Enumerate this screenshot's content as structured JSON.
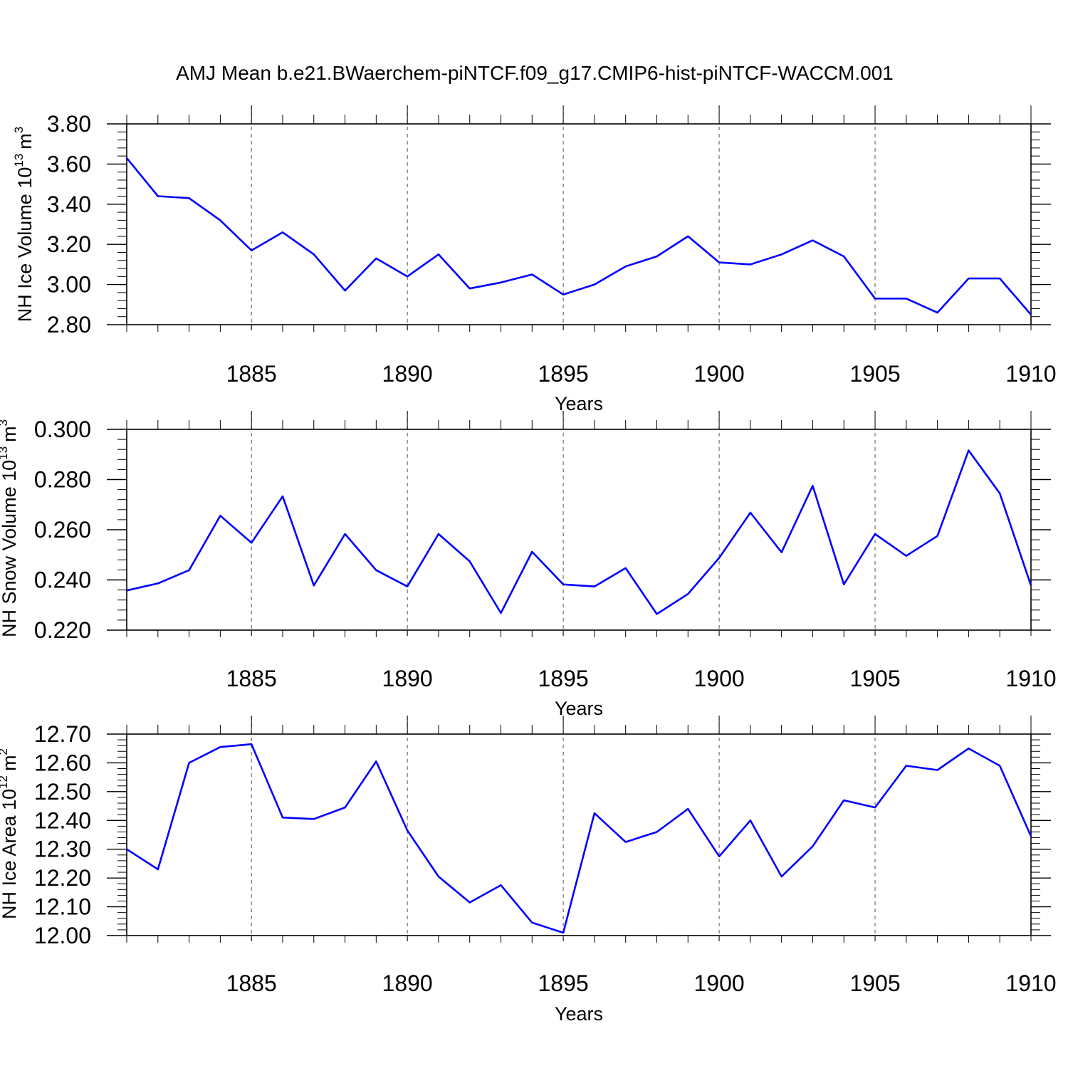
{
  "title": "AMJ Mean b.e21.BWaerchem-piNTCF.f09_g17.CMIP6-hist-piNTCF-WACCM.001",
  "line_color": "#0000ff",
  "chart_data": [
    {
      "type": "line",
      "ylabel_main": "NH Ice Volume 10",
      "ylabel_exp": "13",
      "ylabel_unit": "m",
      "ylabel_unit_exp": "3",
      "xlabel": "Years",
      "xlim": [
        1881,
        1910
      ],
      "ylim": [
        2.8,
        3.8
      ],
      "yticks": [
        "2.80",
        "3.00",
        "3.20",
        "3.40",
        "3.60",
        "3.80"
      ],
      "xticks": [
        "1885",
        "1890",
        "1895",
        "1900",
        "1905",
        "1910"
      ],
      "grid_x": true,
      "x": [
        1881,
        1882,
        1883,
        1884,
        1885,
        1886,
        1887,
        1888,
        1889,
        1890,
        1891,
        1892,
        1893,
        1894,
        1895,
        1896,
        1897,
        1898,
        1899,
        1900,
        1901,
        1902,
        1903,
        1904,
        1905,
        1906,
        1907,
        1908,
        1909,
        1910
      ],
      "values": [
        3.63,
        3.44,
        3.43,
        3.32,
        3.17,
        3.26,
        3.15,
        2.97,
        3.13,
        3.04,
        3.15,
        2.98,
        3.01,
        3.05,
        2.95,
        3.0,
        3.09,
        3.14,
        3.24,
        3.11,
        3.1,
        3.15,
        3.22,
        3.14,
        2.93,
        2.93,
        2.86,
        3.03,
        3.03,
        2.85
      ]
    },
    {
      "type": "line",
      "ylabel_main": "NH Snow Volume 10",
      "ylabel_exp": "13",
      "ylabel_unit": "m",
      "ylabel_unit_exp": "3",
      "xlabel": "Years",
      "xlim": [
        1881,
        1910
      ],
      "ylim": [
        0.22,
        0.3
      ],
      "yticks": [
        "0.220",
        "0.240",
        "0.260",
        "0.280",
        "0.300"
      ],
      "xticks": [
        "1885",
        "1890",
        "1895",
        "1900",
        "1905",
        "1910"
      ],
      "grid_x": true,
      "x": [
        1881,
        1882,
        1883,
        1884,
        1885,
        1886,
        1887,
        1888,
        1889,
        1890,
        1891,
        1892,
        1893,
        1894,
        1895,
        1896,
        1897,
        1898,
        1899,
        1900,
        1901,
        1902,
        1903,
        1904,
        1905,
        1906,
        1907,
        1908,
        1909,
        1910
      ],
      "values": [
        0.2358,
        0.2386,
        0.2439,
        0.2656,
        0.2548,
        0.2733,
        0.2378,
        0.2583,
        0.2439,
        0.2374,
        0.2583,
        0.2474,
        0.2268,
        0.2512,
        0.2382,
        0.2374,
        0.2447,
        0.2264,
        0.2344,
        0.2488,
        0.2668,
        0.251,
        0.2775,
        0.2382,
        0.2583,
        0.2496,
        0.2575,
        0.2916,
        0.2745,
        0.2378
      ]
    },
    {
      "type": "line",
      "ylabel_main": "NH Ice Area 10",
      "ylabel_exp": "12",
      "ylabel_unit": "m",
      "ylabel_unit_exp": "2",
      "xlabel": "Years",
      "xlim": [
        1881,
        1910
      ],
      "ylim": [
        12.0,
        12.7
      ],
      "yticks": [
        "12.00",
        "12.10",
        "12.20",
        "12.30",
        "12.40",
        "12.50",
        "12.60",
        "12.70"
      ],
      "xticks": [
        "1885",
        "1890",
        "1895",
        "1900",
        "1905",
        "1910"
      ],
      "grid_x": true,
      "x": [
        1881,
        1882,
        1883,
        1884,
        1885,
        1886,
        1887,
        1888,
        1889,
        1890,
        1891,
        1892,
        1893,
        1894,
        1895,
        1896,
        1897,
        1898,
        1899,
        1900,
        1901,
        1902,
        1903,
        1904,
        1905,
        1906,
        1907,
        1908,
        1909,
        1910
      ],
      "values": [
        12.3,
        12.23,
        12.6,
        12.655,
        12.665,
        12.41,
        12.405,
        12.445,
        12.605,
        12.365,
        12.205,
        12.115,
        12.175,
        12.045,
        12.01,
        12.425,
        12.325,
        12.36,
        12.44,
        12.275,
        12.4,
        12.205,
        12.31,
        12.47,
        12.445,
        12.59,
        12.575,
        12.65,
        12.59,
        12.345
      ]
    }
  ]
}
